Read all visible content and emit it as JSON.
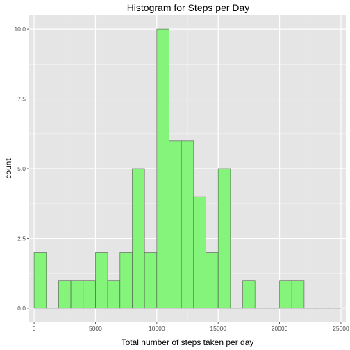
{
  "colors": {
    "panel_bg": "#e5e5e5",
    "grid_major": "#ffffff",
    "bar_fill": "#85f47a",
    "bar_stroke": "#4a4a4a",
    "tick_text": "#4d4d4d"
  },
  "chart_data": {
    "type": "bar",
    "title": "Histogram for Steps per Day",
    "xlabel": "Total number of steps taken per day",
    "ylabel": "count",
    "xlim": [
      -400,
      25400
    ],
    "ylim": [
      -0.5,
      10.5
    ],
    "x_ticks": [
      0,
      5000,
      10000,
      15000,
      20000,
      25000
    ],
    "x_tick_labels": [
      "0",
      "5000",
      "10000",
      "15000",
      "20000",
      "25000"
    ],
    "y_ticks": [
      0,
      2.5,
      5,
      7.5,
      10
    ],
    "y_tick_labels": [
      "0.0",
      "2.5",
      "5.0",
      "7.5",
      "10.0"
    ],
    "bin_width": 1000,
    "bins": [
      {
        "start": 0,
        "end": 1000,
        "count": 2
      },
      {
        "start": 1000,
        "end": 2000,
        "count": 0
      },
      {
        "start": 2000,
        "end": 3000,
        "count": 1
      },
      {
        "start": 3000,
        "end": 4000,
        "count": 1
      },
      {
        "start": 4000,
        "end": 5000,
        "count": 1
      },
      {
        "start": 5000,
        "end": 6000,
        "count": 2
      },
      {
        "start": 6000,
        "end": 7000,
        "count": 1
      },
      {
        "start": 7000,
        "end": 8000,
        "count": 2
      },
      {
        "start": 8000,
        "end": 9000,
        "count": 5
      },
      {
        "start": 9000,
        "end": 10000,
        "count": 2
      },
      {
        "start": 10000,
        "end": 11000,
        "count": 10
      },
      {
        "start": 11000,
        "end": 12000,
        "count": 6
      },
      {
        "start": 12000,
        "end": 13000,
        "count": 6
      },
      {
        "start": 13000,
        "end": 14000,
        "count": 4
      },
      {
        "start": 14000,
        "end": 15000,
        "count": 2
      },
      {
        "start": 15000,
        "end": 16000,
        "count": 5
      },
      {
        "start": 16000,
        "end": 17000,
        "count": 0
      },
      {
        "start": 17000,
        "end": 18000,
        "count": 1
      },
      {
        "start": 18000,
        "end": 19000,
        "count": 0
      },
      {
        "start": 19000,
        "end": 20000,
        "count": 0
      },
      {
        "start": 20000,
        "end": 21000,
        "count": 1
      },
      {
        "start": 21000,
        "end": 22000,
        "count": 1
      },
      {
        "start": 22000,
        "end": 23000,
        "count": 0
      },
      {
        "start": 23000,
        "end": 24000,
        "count": 0
      },
      {
        "start": 24000,
        "end": 25000,
        "count": 0
      }
    ],
    "grid": true,
    "legend": "none"
  }
}
